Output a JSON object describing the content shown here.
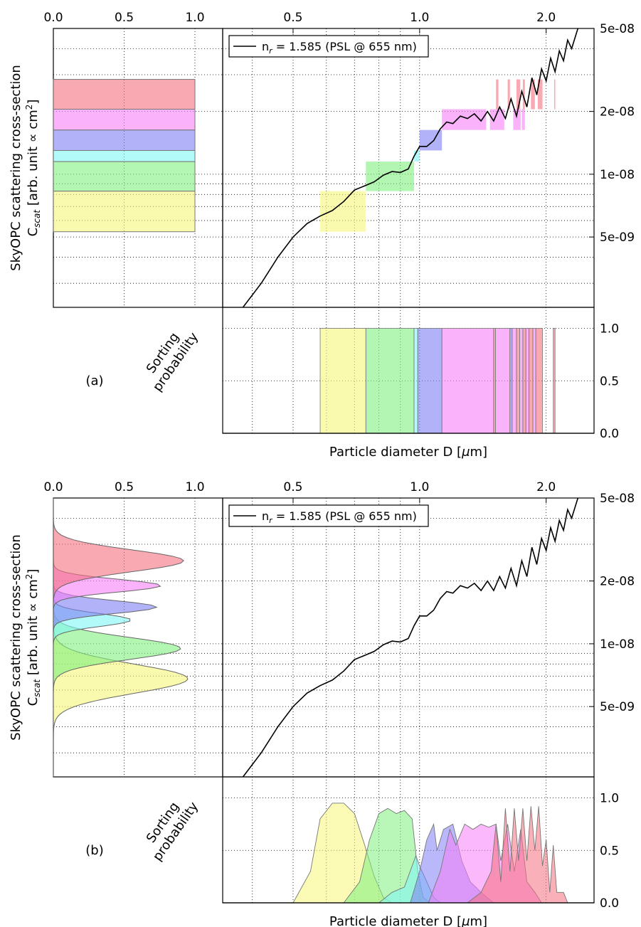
{
  "chart_data": [
    {
      "type": "line",
      "panel_label": "(a)",
      "ylabel_line1": "SkyOPC scattering cross-section",
      "ylabel_line2": "C",
      "ylabel_sub": "scat",
      "ylabel_rest": " [arb. unit ∝ cm",
      "ylabel_sup": "2",
      "ylabel_end": "]",
      "xlabel": "Particle diameter D [",
      "xlabel_mu": "μ",
      "xlabel_end": "m]",
      "sorting_label_line1": "Sorting",
      "sorting_label_line2": "probability",
      "legend": "n",
      "legend_sub": "r",
      "legend_rest": " = 1.585 (PSL @ 655 nm)",
      "x_scale": "log",
      "y_scale": "log",
      "xlim": [
        0.34,
        2.6
      ],
      "ylim": [
        2.3e-09,
        5e-08
      ],
      "x_ticks": [
        {
          "v": 0.5,
          "label": "0.5"
        },
        {
          "v": 1.0,
          "label": "1.0"
        },
        {
          "v": 2.0,
          "label": "2.0"
        }
      ],
      "y_ticks": [
        {
          "v": 5e-08,
          "label": "5e-08"
        },
        {
          "v": 2e-08,
          "label": "2e-08"
        },
        {
          "v": 1e-08,
          "label": "1e-08"
        },
        {
          "v": 5e-09,
          "label": "5e-09"
        }
      ],
      "left_x_ticks": [
        "0.0",
        "0.5",
        "1.0"
      ],
      "prob_ticks": [
        "0.0",
        "0.5",
        "1.0"
      ],
      "curve": [
        [
          0.38,
          2.3e-09
        ],
        [
          0.42,
          3e-09
        ],
        [
          0.46,
          4e-09
        ],
        [
          0.5,
          5e-09
        ],
        [
          0.54,
          5.8e-09
        ],
        [
          0.58,
          6.3e-09
        ],
        [
          0.62,
          6.7e-09
        ],
        [
          0.66,
          7.4e-09
        ],
        [
          0.7,
          8.4e-09
        ],
        [
          0.74,
          8.8e-09
        ],
        [
          0.78,
          9.2e-09
        ],
        [
          0.82,
          9.9e-09
        ],
        [
          0.86,
          1.03e-08
        ],
        [
          0.9,
          1.02e-08
        ],
        [
          0.94,
          1.06e-08
        ],
        [
          0.97,
          1.22e-08
        ],
        [
          1.0,
          1.36e-08
        ],
        [
          1.04,
          1.36e-08
        ],
        [
          1.08,
          1.45e-08
        ],
        [
          1.12,
          1.65e-08
        ],
        [
          1.16,
          1.78e-08
        ],
        [
          1.2,
          1.75e-08
        ],
        [
          1.25,
          1.9e-08
        ],
        [
          1.3,
          1.85e-08
        ],
        [
          1.35,
          1.95e-08
        ],
        [
          1.4,
          1.8e-08
        ],
        [
          1.45,
          2e-08
        ],
        [
          1.5,
          1.8e-08
        ],
        [
          1.55,
          2.1e-08
        ],
        [
          1.6,
          1.85e-08
        ],
        [
          1.65,
          2.3e-08
        ],
        [
          1.7,
          1.9e-08
        ],
        [
          1.75,
          2.5e-08
        ],
        [
          1.8,
          2.1e-08
        ],
        [
          1.85,
          2.9e-08
        ],
        [
          1.9,
          2.4e-08
        ],
        [
          1.95,
          3.2e-08
        ],
        [
          2.0,
          2.8e-08
        ],
        [
          2.05,
          3.6e-08
        ],
        [
          2.1,
          3.1e-08
        ],
        [
          2.15,
          3.9e-08
        ],
        [
          2.2,
          3.5e-08
        ],
        [
          2.25,
          4.4e-08
        ],
        [
          2.3,
          4e-08
        ],
        [
          2.38,
          5e-08
        ]
      ],
      "bins": [
        {
          "name": "yellow",
          "color": "#f7f77a",
          "ylo": 5.3e-09,
          "yhi": 8.3e-09
        },
        {
          "name": "green",
          "color": "#7ef07e",
          "ylo": 8.3e-09,
          "yhi": 1.15e-08
        },
        {
          "name": "cyan",
          "color": "#7ef7f7",
          "ylo": 1.15e-08,
          "yhi": 1.3e-08
        },
        {
          "name": "blue",
          "color": "#7e7ef5",
          "ylo": 1.3e-08,
          "yhi": 1.63e-08
        },
        {
          "name": "magenta",
          "color": "#f77ef7",
          "ylo": 1.63e-08,
          "yhi": 2.05e-08
        },
        {
          "name": "red",
          "color": "#f5707e",
          "ylo": 2.05e-08,
          "yhi": 2.85e-08
        }
      ],
      "bin_rects": [
        {
          "c": 0,
          "x0": 0.58,
          "x1": 0.745
        },
        {
          "c": 1,
          "x0": 0.745,
          "x1": 0.97
        },
        {
          "c": 2,
          "x0": 0.97,
          "x1": 1.0
        },
        {
          "c": 3,
          "x0": 1.0,
          "x1": 1.13
        },
        {
          "c": 4,
          "x0": 1.13,
          "x1": 1.44
        },
        {
          "c": 4,
          "x0": 1.47,
          "x1": 1.59
        },
        {
          "c": 4,
          "x0": 1.67,
          "x1": 1.74
        },
        {
          "c": 4,
          "x0": 1.75,
          "x1": 1.78
        },
        {
          "c": 5,
          "x0": 1.52,
          "x1": 1.54
        },
        {
          "c": 5,
          "x0": 1.62,
          "x1": 1.64
        },
        {
          "c": 5,
          "x0": 1.7,
          "x1": 1.735
        },
        {
          "c": 5,
          "x0": 1.76,
          "x1": 1.78
        },
        {
          "c": 5,
          "x0": 1.84,
          "x1": 1.88
        },
        {
          "c": 5,
          "x0": 1.91,
          "x1": 1.96
        },
        {
          "c": 5,
          "x0": 2.09,
          "x1": 2.1
        }
      ],
      "prob_rects": [
        {
          "c": 0,
          "x0": 0.58,
          "x1": 0.745
        },
        {
          "c": 1,
          "x0": 0.745,
          "x1": 0.97
        },
        {
          "c": 2,
          "x0": 0.97,
          "x1": 0.99
        },
        {
          "c": 3,
          "x0": 0.99,
          "x1": 1.13
        },
        {
          "c": 4,
          "x0": 1.13,
          "x1": 1.5
        },
        {
          "c": 5,
          "x0": 1.5,
          "x1": 1.515
        },
        {
          "c": 4,
          "x0": 1.515,
          "x1": 1.64
        },
        {
          "c": 3,
          "x0": 1.64,
          "x1": 1.66
        },
        {
          "c": 4,
          "x0": 1.66,
          "x1": 1.7
        },
        {
          "c": 5,
          "x0": 1.7,
          "x1": 1.73
        },
        {
          "c": 4,
          "x0": 1.73,
          "x1": 1.76
        },
        {
          "c": 5,
          "x0": 1.76,
          "x1": 1.79
        },
        {
          "c": 4,
          "x0": 1.79,
          "x1": 1.82
        },
        {
          "c": 5,
          "x0": 1.82,
          "x1": 1.86
        },
        {
          "c": 4,
          "x0": 1.86,
          "x1": 1.89
        },
        {
          "c": 5,
          "x0": 1.89,
          "x1": 1.96
        },
        {
          "c": 5,
          "x0": 2.08,
          "x1": 2.1
        }
      ]
    },
    {
      "type": "area",
      "panel_label": "(b)",
      "ylabel_line1": "SkyOPC scattering cross-section",
      "ylabel_line2": "C",
      "ylabel_sub": "scat",
      "ylabel_rest": " [arb. unit ∝ cm",
      "ylabel_sup": "2",
      "ylabel_end": "]",
      "xlabel": "Particle diameter D [",
      "xlabel_mu": "μ",
      "xlabel_end": "m]",
      "sorting_label_line1": "Sorting",
      "sorting_label_line2": "probability",
      "legend": "n",
      "legend_sub": "r",
      "legend_rest": " = 1.585 (PSL @ 655 nm)",
      "x_scale": "log",
      "y_scale": "log",
      "xlim": [
        0.34,
        2.6
      ],
      "ylim": [
        2.3e-09,
        5e-08
      ],
      "x_ticks": [
        {
          "v": 0.5,
          "label": "0.5"
        },
        {
          "v": 1.0,
          "label": "1.0"
        },
        {
          "v": 2.0,
          "label": "2.0"
        }
      ],
      "y_ticks": [
        {
          "v": 5e-08,
          "label": "5e-08"
        },
        {
          "v": 2e-08,
          "label": "2e-08"
        },
        {
          "v": 1e-08,
          "label": "1e-08"
        },
        {
          "v": 5e-09,
          "label": "5e-09"
        }
      ],
      "left_x_ticks": [
        "0.0",
        "0.5",
        "1.0"
      ],
      "prob_ticks": [
        "0.0",
        "0.5",
        "1.0"
      ],
      "curve": [
        [
          0.38,
          2.3e-09
        ],
        [
          0.42,
          3e-09
        ],
        [
          0.46,
          4e-09
        ],
        [
          0.5,
          5e-09
        ],
        [
          0.54,
          5.8e-09
        ],
        [
          0.58,
          6.3e-09
        ],
        [
          0.62,
          6.7e-09
        ],
        [
          0.66,
          7.4e-09
        ],
        [
          0.7,
          8.4e-09
        ],
        [
          0.74,
          8.8e-09
        ],
        [
          0.78,
          9.2e-09
        ],
        [
          0.82,
          9.9e-09
        ],
        [
          0.86,
          1.03e-08
        ],
        [
          0.9,
          1.02e-08
        ],
        [
          0.94,
          1.06e-08
        ],
        [
          0.97,
          1.22e-08
        ],
        [
          1.0,
          1.36e-08
        ],
        [
          1.04,
          1.36e-08
        ],
        [
          1.08,
          1.45e-08
        ],
        [
          1.12,
          1.65e-08
        ],
        [
          1.16,
          1.78e-08
        ],
        [
          1.2,
          1.75e-08
        ],
        [
          1.25,
          1.9e-08
        ],
        [
          1.3,
          1.85e-08
        ],
        [
          1.35,
          1.95e-08
        ],
        [
          1.4,
          1.8e-08
        ],
        [
          1.45,
          2e-08
        ],
        [
          1.5,
          1.8e-08
        ],
        [
          1.55,
          2.1e-08
        ],
        [
          1.6,
          1.85e-08
        ],
        [
          1.65,
          2.3e-08
        ],
        [
          1.7,
          1.9e-08
        ],
        [
          1.75,
          2.5e-08
        ],
        [
          1.8,
          2.1e-08
        ],
        [
          1.85,
          2.9e-08
        ],
        [
          1.9,
          2.4e-08
        ],
        [
          1.95,
          3.2e-08
        ],
        [
          2.0,
          2.8e-08
        ],
        [
          2.05,
          3.6e-08
        ],
        [
          2.1,
          3.1e-08
        ],
        [
          2.15,
          3.9e-08
        ],
        [
          2.2,
          3.5e-08
        ],
        [
          2.25,
          4.4e-08
        ],
        [
          2.3,
          4e-08
        ],
        [
          2.38,
          5e-08
        ]
      ],
      "distributions": [
        {
          "name": "yellow",
          "color": "#f7f77a",
          "center": 6.8e-09,
          "peak": 0.95,
          "width": 0.16
        },
        {
          "name": "green",
          "color": "#7ef07e",
          "center": 9.5e-09,
          "peak": 0.9,
          "width": 0.12
        },
        {
          "name": "cyan",
          "color": "#7ef7f7",
          "center": 1.3e-08,
          "peak": 0.55,
          "width": 0.07
        },
        {
          "name": "blue",
          "color": "#7e7ef5",
          "center": 1.5e-08,
          "peak": 0.73,
          "width": 0.07
        },
        {
          "name": "magenta",
          "color": "#f77ef7",
          "center": 1.9e-08,
          "peak": 0.76,
          "width": 0.07
        },
        {
          "name": "red",
          "color": "#f5707e",
          "center": 2.5e-08,
          "peak": 0.92,
          "width": 0.12
        }
      ],
      "prob_curves": [
        {
          "c": 0,
          "points": [
            [
              0.5,
              0
            ],
            [
              0.55,
              0.3
            ],
            [
              0.58,
              0.8
            ],
            [
              0.62,
              0.95
            ],
            [
              0.66,
              0.95
            ],
            [
              0.7,
              0.85
            ],
            [
              0.74,
              0.55
            ],
            [
              0.78,
              0.25
            ],
            [
              0.82,
              0.05
            ],
            [
              0.86,
              0
            ]
          ]
        },
        {
          "c": 1,
          "points": [
            [
              0.66,
              0
            ],
            [
              0.72,
              0.2
            ],
            [
              0.76,
              0.6
            ],
            [
              0.8,
              0.85
            ],
            [
              0.84,
              0.9
            ],
            [
              0.88,
              0.85
            ],
            [
              0.92,
              0.88
            ],
            [
              0.96,
              0.8
            ],
            [
              0.99,
              0.3
            ],
            [
              1.02,
              0.05
            ],
            [
              1.06,
              0
            ]
          ]
        },
        {
          "c": 2,
          "points": [
            [
              0.8,
              0
            ],
            [
              0.86,
              0.1
            ],
            [
              0.92,
              0.15
            ],
            [
              0.98,
              0.45
            ],
            [
              1.0,
              0.35
            ],
            [
              1.04,
              0.2
            ],
            [
              1.08,
              0.05
            ],
            [
              1.12,
              0
            ]
          ]
        },
        {
          "c": 3,
          "points": [
            [
              0.95,
              0
            ],
            [
              1.0,
              0.3
            ],
            [
              1.04,
              0.6
            ],
            [
              1.08,
              0.75
            ],
            [
              1.1,
              0.5
            ],
            [
              1.14,
              0.7
            ],
            [
              1.2,
              0.75
            ],
            [
              1.26,
              0.4
            ],
            [
              1.32,
              0.2
            ],
            [
              1.4,
              0.1
            ],
            [
              1.5,
              0
            ]
          ]
        },
        {
          "c": 4,
          "points": [
            [
              1.05,
              0
            ],
            [
              1.12,
              0.3
            ],
            [
              1.18,
              0.7
            ],
            [
              1.22,
              0.55
            ],
            [
              1.28,
              0.75
            ],
            [
              1.34,
              0.7
            ],
            [
              1.4,
              0.75
            ],
            [
              1.46,
              0.72
            ],
            [
              1.52,
              0.75
            ],
            [
              1.56,
              0.4
            ],
            [
              1.62,
              0.75
            ],
            [
              1.68,
              0.3
            ],
            [
              1.74,
              0.7
            ],
            [
              1.8,
              0.2
            ],
            [
              1.88,
              0.1
            ],
            [
              1.95,
              0
            ]
          ]
        },
        {
          "c": 5,
          "points": [
            [
              1.3,
              0
            ],
            [
              1.4,
              0.1
            ],
            [
              1.48,
              0.3
            ],
            [
              1.52,
              0.75
            ],
            [
              1.56,
              0.2
            ],
            [
              1.6,
              0.9
            ],
            [
              1.64,
              0.3
            ],
            [
              1.68,
              0.9
            ],
            [
              1.72,
              0.4
            ],
            [
              1.76,
              0.9
            ],
            [
              1.8,
              0.4
            ],
            [
              1.84,
              0.92
            ],
            [
              1.88,
              0.5
            ],
            [
              1.92,
              0.92
            ],
            [
              1.96,
              0.35
            ],
            [
              2.0,
              0.6
            ],
            [
              2.04,
              0.1
            ],
            [
              2.08,
              0.55
            ],
            [
              2.12,
              0.1
            ],
            [
              2.2,
              0.1
            ],
            [
              2.25,
              0
            ]
          ]
        }
      ]
    }
  ]
}
